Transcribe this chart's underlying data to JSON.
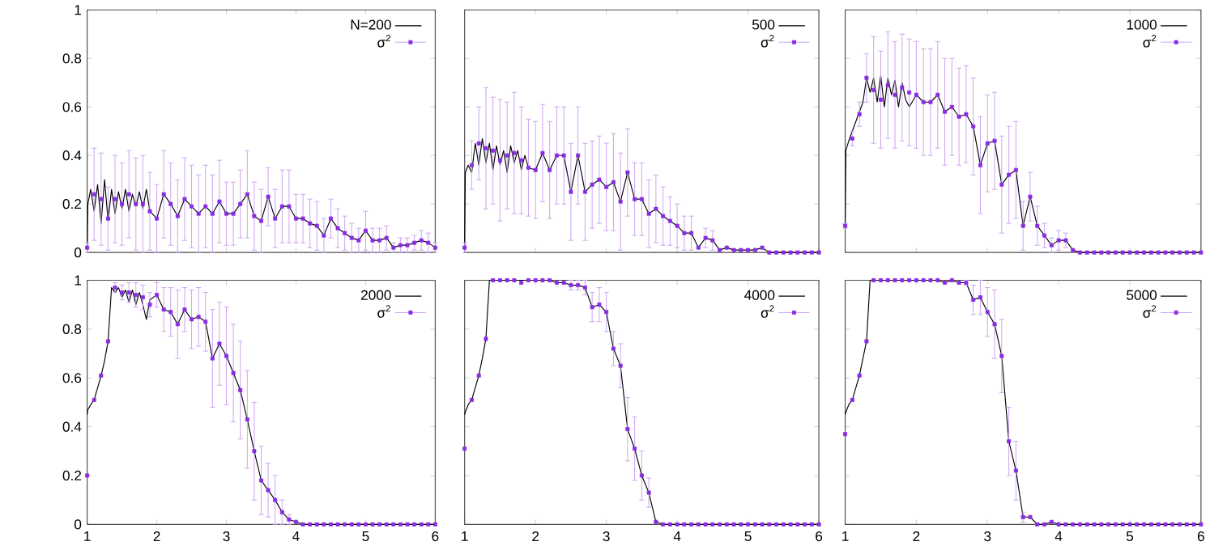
{
  "chart_data": [
    {
      "type": "line",
      "xlim": [
        1,
        6
      ],
      "ylim": [
        0,
        1
      ],
      "xticks": [
        1,
        2,
        3,
        4,
        5,
        6
      ],
      "yticks": [
        0,
        0.2,
        0.4,
        0.6,
        0.8,
        1
      ],
      "legend": "top right",
      "tick_labels": "y",
      "series": [
        {
          "name": "N=200",
          "type": "line",
          "color": "#000000",
          "x": [
            1,
            1.01,
            1.05,
            1.1,
            1.15,
            1.2,
            1.25,
            1.3,
            1.35,
            1.4,
            1.45,
            1.5,
            1.55,
            1.6,
            1.65,
            1.7,
            1.75,
            1.8,
            1.85,
            1.9,
            2,
            2.1,
            2.2,
            2.3,
            2.4,
            2.5,
            2.6,
            2.7,
            2.8,
            2.9,
            3,
            3.1,
            3.2,
            3.3,
            3.4,
            3.5,
            3.6,
            3.7,
            3.8,
            3.9,
            4,
            4.1,
            4.2,
            4.3,
            4.4,
            4.5,
            4.6,
            4.7,
            4.8,
            4.9,
            5,
            5.1,
            5.2,
            5.3,
            5.4,
            5.5,
            5.6,
            5.7,
            5.8,
            5.9,
            6
          ],
          "values": [
            0.02,
            0.2,
            0.26,
            0.17,
            0.28,
            0.12,
            0.3,
            0.13,
            0.26,
            0.16,
            0.25,
            0.18,
            0.26,
            0.17,
            0.24,
            0.19,
            0.25,
            0.18,
            0.26,
            0.17,
            0.14,
            0.24,
            0.2,
            0.15,
            0.22,
            0.19,
            0.16,
            0.19,
            0.16,
            0.21,
            0.16,
            0.16,
            0.2,
            0.24,
            0.15,
            0.13,
            0.23,
            0.14,
            0.19,
            0.19,
            0.14,
            0.14,
            0.12,
            0.11,
            0.07,
            0.14,
            0.1,
            0.08,
            0.06,
            0.05,
            0.09,
            0.05,
            0.05,
            0.06,
            0.02,
            0.03,
            0.03,
            0.04,
            0.05,
            0.04,
            0.02
          ]
        },
        {
          "name": "σ$^{2}$",
          "type": "scatter",
          "marker": "square",
          "color": "#8a2be2",
          "x": [
            1,
            1.1,
            1.2,
            1.3,
            1.4,
            1.5,
            1.6,
            1.7,
            1.8,
            1.9,
            2,
            2.1,
            2.2,
            2.3,
            2.4,
            2.5,
            2.6,
            2.7,
            2.8,
            2.9,
            3,
            3.1,
            3.2,
            3.3,
            3.4,
            3.5,
            3.6,
            3.7,
            3.8,
            3.9,
            4,
            4.1,
            4.2,
            4.3,
            4.4,
            4.5,
            4.6,
            4.7,
            4.8,
            4.9,
            5,
            5.1,
            5.2,
            5.3,
            5.4,
            5.5,
            5.6,
            5.7,
            5.8,
            5.9,
            6
          ],
          "values": [
            0.02,
            0.24,
            0.22,
            0.14,
            0.22,
            0.2,
            0.24,
            0.2,
            0.2,
            0.17,
            0.14,
            0.24,
            0.2,
            0.15,
            0.22,
            0.19,
            0.16,
            0.19,
            0.16,
            0.21,
            0.16,
            0.16,
            0.2,
            0.24,
            0.15,
            0.13,
            0.23,
            0.14,
            0.19,
            0.19,
            0.14,
            0.14,
            0.12,
            0.11,
            0.07,
            0.14,
            0.1,
            0.08,
            0.06,
            0.05,
            0.09,
            0.05,
            0.05,
            0.06,
            0.02,
            0.03,
            0.03,
            0.04,
            0.05,
            0.04,
            0.02
          ],
          "errors": [
            0.02,
            0.19,
            0.19,
            0.13,
            0.18,
            0.17,
            0.18,
            0.19,
            0.2,
            0.16,
            0.14,
            0.18,
            0.17,
            0.15,
            0.17,
            0.17,
            0.16,
            0.17,
            0.16,
            0.17,
            0.13,
            0.13,
            0.14,
            0.18,
            0.14,
            0.13,
            0.12,
            0.12,
            0.15,
            0.15,
            0.1,
            0.1,
            0.1,
            0.1,
            0.07,
            0.08,
            0.08,
            0.07,
            0.06,
            0.05,
            0.08,
            0.05,
            0.05,
            0.05,
            0.02,
            0.03,
            0.03,
            0.03,
            0.04,
            0.04,
            0.02
          ]
        }
      ]
    },
    {
      "type": "line",
      "xlim": [
        1,
        6
      ],
      "ylim": [
        0,
        1
      ],
      "xticks": [
        1,
        2,
        3,
        4,
        5,
        6
      ],
      "yticks": [
        0,
        0.2,
        0.4,
        0.6,
        0.8,
        1
      ],
      "legend": "top right",
      "tick_labels": false,
      "series": [
        {
          "name": "500",
          "type": "line",
          "color": "#000000",
          "x": [
            1,
            1.01,
            1.05,
            1.1,
            1.15,
            1.2,
            1.25,
            1.3,
            1.35,
            1.4,
            1.45,
            1.5,
            1.55,
            1.6,
            1.65,
            1.7,
            1.75,
            1.8,
            1.85,
            1.9,
            2,
            2.1,
            2.2,
            2.3,
            2.4,
            2.5,
            2.6,
            2.7,
            2.8,
            2.9,
            3,
            3.1,
            3.2,
            3.3,
            3.4,
            3.5,
            3.6,
            3.7,
            3.8,
            3.9,
            4,
            4.1,
            4.2,
            4.3,
            4.4,
            4.5,
            4.6,
            4.7,
            4.8,
            4.9,
            5,
            5.1,
            5.2,
            5.3,
            5.4,
            5.5,
            5.6,
            5.7,
            5.8,
            5.9,
            6
          ],
          "values": [
            0.02,
            0.33,
            0.36,
            0.33,
            0.45,
            0.36,
            0.47,
            0.37,
            0.45,
            0.34,
            0.44,
            0.36,
            0.42,
            0.33,
            0.44,
            0.37,
            0.42,
            0.34,
            0.4,
            0.35,
            0.34,
            0.41,
            0.34,
            0.4,
            0.4,
            0.25,
            0.4,
            0.25,
            0.28,
            0.3,
            0.27,
            0.29,
            0.21,
            0.33,
            0.22,
            0.22,
            0.16,
            0.18,
            0.15,
            0.13,
            0.11,
            0.08,
            0.08,
            0.02,
            0.06,
            0.05,
            0.01,
            0.02,
            0.01,
            0.01,
            0.01,
            0.01,
            0.02,
            0,
            0,
            0,
            0,
            0,
            0,
            0,
            0
          ]
        },
        {
          "name": "σ$^{2}$",
          "type": "scatter",
          "marker": "square",
          "color": "#8a2be2",
          "x": [
            1,
            1.1,
            1.2,
            1.3,
            1.4,
            1.5,
            1.6,
            1.7,
            1.8,
            1.9,
            2,
            2.1,
            2.2,
            2.3,
            2.4,
            2.5,
            2.6,
            2.7,
            2.8,
            2.9,
            3,
            3.1,
            3.2,
            3.3,
            3.4,
            3.5,
            3.6,
            3.7,
            3.8,
            3.9,
            4,
            4.1,
            4.2,
            4.3,
            4.4,
            4.5,
            4.6,
            4.7,
            4.8,
            4.9,
            5,
            5.1,
            5.2,
            5.3,
            5.4,
            5.5,
            5.6,
            5.7,
            5.8,
            5.9,
            6
          ],
          "values": [
            0.02,
            0.36,
            0.45,
            0.43,
            0.42,
            0.38,
            0.4,
            0.41,
            0.38,
            0.35,
            0.34,
            0.41,
            0.34,
            0.4,
            0.4,
            0.25,
            0.4,
            0.25,
            0.28,
            0.3,
            0.27,
            0.29,
            0.21,
            0.33,
            0.22,
            0.22,
            0.16,
            0.18,
            0.15,
            0.13,
            0.11,
            0.08,
            0.08,
            0.02,
            0.06,
            0.05,
            0.01,
            0.02,
            0.01,
            0.01,
            0.01,
            0.01,
            0.02,
            0,
            0,
            0,
            0,
            0,
            0,
            0,
            0
          ],
          "errors": [
            0.02,
            0.1,
            0.15,
            0.25,
            0.22,
            0.25,
            0.22,
            0.25,
            0.22,
            0.2,
            0.2,
            0.2,
            0.2,
            0.2,
            0.2,
            0.2,
            0.2,
            0.2,
            0.18,
            0.18,
            0.18,
            0.2,
            0.2,
            0.18,
            0.15,
            0.15,
            0.14,
            0.14,
            0.12,
            0.1,
            0.09,
            0.07,
            0.07,
            null,
            0.04,
            0.04,
            null,
            null,
            null,
            null,
            null,
            null,
            null,
            null,
            null,
            null,
            null,
            null,
            null,
            null,
            null
          ]
        }
      ]
    },
    {
      "type": "line",
      "xlim": [
        1,
        6
      ],
      "ylim": [
        0,
        1
      ],
      "xticks": [
        1,
        2,
        3,
        4,
        5,
        6
      ],
      "yticks": [
        0,
        0.2,
        0.4,
        0.6,
        0.8,
        1
      ],
      "legend": "top right",
      "tick_labels": false,
      "series": [
        {
          "name": "1000",
          "type": "line",
          "color": "#000000",
          "x": [
            1,
            1.01,
            1.05,
            1.1,
            1.15,
            1.2,
            1.25,
            1.3,
            1.35,
            1.4,
            1.45,
            1.5,
            1.55,
            1.6,
            1.65,
            1.7,
            1.75,
            1.8,
            1.85,
            1.9,
            2,
            2.1,
            2.2,
            2.3,
            2.4,
            2.5,
            2.6,
            2.7,
            2.8,
            2.9,
            3,
            3.1,
            3.2,
            3.3,
            3.4,
            3.5,
            3.6,
            3.7,
            3.8,
            3.9,
            4,
            4.1,
            4.2,
            4.3,
            4.4,
            4.5,
            4.6,
            4.7,
            4.8,
            4.9,
            5,
            5.1,
            5.2,
            5.3,
            5.4,
            5.5,
            5.6,
            5.7,
            5.8,
            5.9,
            6
          ],
          "values": [
            0.11,
            0.42,
            0.46,
            0.5,
            0.54,
            0.58,
            0.62,
            0.72,
            0.66,
            0.72,
            0.62,
            0.73,
            0.6,
            0.72,
            0.65,
            0.71,
            0.6,
            0.7,
            0.63,
            0.6,
            0.65,
            0.62,
            0.62,
            0.65,
            0.58,
            0.6,
            0.56,
            0.57,
            0.52,
            0.36,
            0.45,
            0.46,
            0.28,
            0.32,
            0.34,
            0.11,
            0.23,
            0.11,
            0.07,
            0.03,
            0.05,
            0.05,
            0.01,
            0,
            0,
            0,
            0,
            0,
            0,
            0,
            0,
            0,
            0,
            0,
            0,
            0,
            0,
            0,
            0,
            0,
            0
          ]
        },
        {
          "name": "σ$^{2}$",
          "type": "scatter",
          "marker": "square",
          "color": "#8a2be2",
          "x": [
            1,
            1.1,
            1.2,
            1.3,
            1.4,
            1.5,
            1.6,
            1.7,
            1.8,
            1.9,
            2,
            2.1,
            2.2,
            2.3,
            2.4,
            2.5,
            2.6,
            2.7,
            2.8,
            2.9,
            3,
            3.1,
            3.2,
            3.3,
            3.4,
            3.5,
            3.6,
            3.7,
            3.8,
            3.9,
            4,
            4.1,
            4.2,
            4.3,
            4.4,
            4.5,
            4.6,
            4.7,
            4.8,
            4.9,
            5,
            5.1,
            5.2,
            5.3,
            5.4,
            5.5,
            5.6,
            5.7,
            5.8,
            5.9,
            6
          ],
          "values": [
            0.11,
            0.47,
            0.57,
            0.72,
            0.67,
            0.63,
            0.69,
            0.65,
            0.68,
            0.66,
            0.65,
            0.62,
            0.62,
            0.65,
            0.58,
            0.6,
            0.56,
            0.57,
            0.52,
            0.36,
            0.45,
            0.46,
            0.28,
            0.32,
            0.34,
            0.11,
            0.23,
            0.11,
            0.07,
            0.03,
            0.05,
            0.05,
            0.01,
            0,
            0,
            0,
            0,
            0,
            0,
            0,
            0,
            0,
            0,
            0,
            0,
            0,
            0,
            0,
            0,
            0,
            0
          ],
          "errors": [
            0.01,
            0.03,
            0.05,
            0.1,
            0.22,
            0.2,
            0.22,
            0.22,
            0.22,
            0.22,
            0.22,
            0.22,
            0.22,
            0.22,
            0.22,
            0.2,
            0.2,
            0.2,
            0.2,
            0.2,
            0.2,
            0.2,
            0.2,
            0.2,
            0.2,
            0.1,
            0.1,
            0.08,
            0.05,
            0.03,
            0.04,
            0.03,
            null,
            null,
            null,
            null,
            null,
            null,
            null,
            null,
            null,
            null,
            null,
            null,
            null,
            null,
            null,
            null,
            null,
            null,
            null
          ]
        }
      ]
    },
    {
      "type": "line",
      "xlim": [
        1,
        6
      ],
      "ylim": [
        0,
        1
      ],
      "xticks": [
        1,
        2,
        3,
        4,
        5,
        6
      ],
      "yticks": [
        0,
        0.2,
        0.4,
        0.6,
        0.8,
        1
      ],
      "legend": "top right",
      "series": [
        {
          "name": "2000",
          "type": "line",
          "color": "#000000",
          "x": [
            1,
            1.01,
            1.05,
            1.1,
            1.15,
            1.2,
            1.25,
            1.3,
            1.35,
            1.4,
            1.45,
            1.5,
            1.55,
            1.6,
            1.65,
            1.7,
            1.75,
            1.8,
            1.85,
            1.9,
            2,
            2.1,
            2.2,
            2.3,
            2.4,
            2.5,
            2.6,
            2.7,
            2.8,
            2.9,
            3,
            3.1,
            3.2,
            3.3,
            3.4,
            3.5,
            3.6,
            3.7,
            3.8,
            3.9,
            4,
            4.1,
            4.2,
            4.3,
            4.4,
            4.5,
            4.6,
            4.7,
            4.8,
            4.9,
            5,
            5.1,
            5.2,
            5.3,
            5.4,
            5.5,
            5.6,
            5.7,
            5.8,
            5.9,
            6
          ],
          "values": [
            0.45,
            0.47,
            0.49,
            0.51,
            0.56,
            0.61,
            0.67,
            0.75,
            0.97,
            0.95,
            0.97,
            0.93,
            0.96,
            0.91,
            0.96,
            0.9,
            0.95,
            0.9,
            0.84,
            0.92,
            0.94,
            0.88,
            0.87,
            0.82,
            0.88,
            0.84,
            0.85,
            0.83,
            0.68,
            0.74,
            0.69,
            0.62,
            0.55,
            0.43,
            0.3,
            0.18,
            0.14,
            0.1,
            0.05,
            0.02,
            0.01,
            0,
            0,
            0,
            0,
            0,
            0,
            0,
            0,
            0,
            0,
            0,
            0,
            0,
            0,
            0,
            0,
            0,
            0,
            0,
            0
          ]
        },
        {
          "name": "σ$^{2}$",
          "type": "scatter",
          "marker": "square",
          "color": "#8a2be2",
          "x": [
            1,
            1.1,
            1.2,
            1.3,
            1.4,
            1.5,
            1.6,
            1.7,
            1.8,
            1.9,
            2,
            2.1,
            2.2,
            2.3,
            2.4,
            2.5,
            2.6,
            2.7,
            2.8,
            2.9,
            3,
            3.1,
            3.2,
            3.3,
            3.4,
            3.5,
            3.6,
            3.7,
            3.8,
            3.9,
            4,
            4.1,
            4.2,
            4.3,
            4.4,
            4.5,
            4.6,
            4.7,
            4.8,
            4.9,
            5,
            5.1,
            5.2,
            5.3,
            5.4,
            5.5,
            5.6,
            5.7,
            5.8,
            5.9,
            6
          ],
          "values": [
            0.2,
            0.51,
            0.61,
            0.75,
            0.97,
            0.95,
            0.95,
            0.94,
            0.93,
            0.9,
            0.94,
            0.88,
            0.87,
            0.82,
            0.88,
            0.84,
            0.85,
            0.83,
            0.68,
            0.74,
            0.69,
            0.62,
            0.55,
            0.43,
            0.3,
            0.18,
            0.14,
            0.1,
            0.05,
            0.02,
            0.01,
            0,
            0,
            0,
            0,
            0,
            0,
            0,
            0,
            0,
            0,
            0,
            0,
            0,
            0,
            0,
            0,
            0,
            0,
            0,
            0
          ],
          "errors": [
            null,
            null,
            null,
            null,
            0.02,
            0.03,
            0.04,
            0.05,
            0.05,
            0.05,
            0.05,
            0.09,
            0.1,
            0.14,
            0.09,
            0.12,
            0.12,
            0.12,
            0.2,
            0.17,
            0.2,
            0.2,
            0.2,
            0.2,
            0.2,
            0.14,
            0.11,
            0.1,
            0.05,
            0.02,
            null,
            null,
            null,
            null,
            null,
            null,
            null,
            null,
            null,
            null,
            null,
            null,
            null,
            null,
            null,
            null,
            null,
            null,
            null,
            null,
            null
          ]
        }
      ]
    },
    {
      "type": "line",
      "xlim": [
        1,
        6
      ],
      "ylim": [
        0,
        1
      ],
      "xticks": [
        1,
        2,
        3,
        4,
        5,
        6
      ],
      "yticks": [
        0,
        0.2,
        0.4,
        0.6,
        0.8,
        1
      ],
      "legend": "top right",
      "tick_labels": "x",
      "series": [
        {
          "name": "4000",
          "type": "line",
          "color": "#000000",
          "x": [
            1,
            1.01,
            1.05,
            1.1,
            1.15,
            1.2,
            1.25,
            1.3,
            1.35,
            1.4,
            1.45,
            1.5,
            1.55,
            1.6,
            1.65,
            1.7,
            1.75,
            1.8,
            1.85,
            1.9,
            2,
            2.1,
            2.2,
            2.3,
            2.4,
            2.5,
            2.6,
            2.7,
            2.8,
            2.9,
            3,
            3.1,
            3.2,
            3.3,
            3.4,
            3.5,
            3.6,
            3.7,
            3.8,
            3.9,
            4,
            4.1,
            4.2,
            4.3,
            4.4,
            4.5,
            4.6,
            4.7,
            4.8,
            4.9,
            5,
            5.1,
            5.2,
            5.3,
            5.4,
            5.5,
            5.6,
            5.7,
            5.8,
            5.9,
            6
          ],
          "values": [
            0.45,
            0.46,
            0.49,
            0.51,
            0.56,
            0.61,
            0.68,
            0.76,
            1,
            1,
            1,
            1,
            1,
            1,
            1,
            1,
            1,
            1,
            1,
            1,
            1,
            1,
            1,
            0.99,
            0.99,
            0.98,
            0.98,
            0.97,
            0.89,
            0.9,
            0.87,
            0.72,
            0.65,
            0.39,
            0.31,
            0.2,
            0.13,
            0.01,
            0,
            0,
            0,
            0,
            0,
            0,
            0,
            0,
            0,
            0,
            0,
            0,
            0,
            0,
            0,
            0,
            0,
            0,
            0,
            0,
            0,
            0,
            0
          ]
        },
        {
          "name": "σ$^{2}$",
          "type": "scatter",
          "marker": "square",
          "color": "#8a2be2",
          "x": [
            1,
            1.1,
            1.2,
            1.3,
            1.4,
            1.5,
            1.6,
            1.7,
            1.8,
            1.9,
            2,
            2.1,
            2.2,
            2.3,
            2.4,
            2.5,
            2.6,
            2.7,
            2.8,
            2.9,
            3,
            3.1,
            3.2,
            3.3,
            3.4,
            3.5,
            3.6,
            3.7,
            3.8,
            3.9,
            4,
            4.1,
            4.2,
            4.3,
            4.4,
            4.5,
            4.6,
            4.7,
            4.8,
            4.9,
            5,
            5.1,
            5.2,
            5.3,
            5.4,
            5.5,
            5.6,
            5.7,
            5.8,
            5.9,
            6
          ],
          "values": [
            0.31,
            0.51,
            0.61,
            0.76,
            1,
            1,
            1,
            1,
            0.99,
            1,
            1,
            1,
            1,
            0.99,
            0.99,
            0.98,
            0.98,
            0.97,
            0.89,
            0.9,
            0.87,
            0.72,
            0.65,
            0.39,
            0.31,
            0.2,
            0.13,
            0.01,
            0,
            0,
            0,
            0,
            0,
            0,
            0,
            0,
            0,
            0,
            0,
            0,
            0,
            0,
            0,
            0,
            0,
            0,
            0,
            0,
            0,
            0,
            0
          ],
          "errors": [
            null,
            null,
            null,
            null,
            null,
            null,
            null,
            null,
            null,
            null,
            null,
            null,
            null,
            null,
            null,
            0.02,
            0.02,
            0.03,
            0.06,
            0.07,
            0.08,
            0.07,
            0.09,
            0.13,
            0.13,
            0.1,
            0.06,
            null,
            null,
            null,
            null,
            null,
            null,
            null,
            null,
            null,
            null,
            null,
            null,
            null,
            null,
            null,
            null,
            null,
            null,
            null,
            null,
            null,
            null,
            null,
            null
          ]
        }
      ]
    },
    {
      "type": "line",
      "xlim": [
        1,
        6
      ],
      "ylim": [
        0,
        1
      ],
      "xticks": [
        1,
        2,
        3,
        4,
        5,
        6
      ],
      "yticks": [
        0,
        0.2,
        0.4,
        0.6,
        0.8,
        1
      ],
      "legend": "top right",
      "tick_labels": "x",
      "series": [
        {
          "name": "5000",
          "type": "line",
          "color": "#000000",
          "x": [
            1,
            1.01,
            1.05,
            1.1,
            1.15,
            1.2,
            1.25,
            1.3,
            1.35,
            1.4,
            1.45,
            1.5,
            1.55,
            1.6,
            1.65,
            1.7,
            1.75,
            1.8,
            1.85,
            1.9,
            2,
            2.1,
            2.2,
            2.3,
            2.4,
            2.5,
            2.6,
            2.7,
            2.8,
            2.9,
            3,
            3.1,
            3.2,
            3.3,
            3.4,
            3.5,
            3.6,
            3.7,
            3.8,
            3.9,
            4,
            4.1,
            4.2,
            4.3,
            4.4,
            4.5,
            4.6,
            4.7,
            4.8,
            4.9,
            5,
            5.1,
            5.2,
            5.3,
            5.4,
            5.5,
            5.6,
            5.7,
            5.8,
            5.9,
            6
          ],
          "values": [
            0.45,
            0.46,
            0.49,
            0.51,
            0.56,
            0.61,
            0.68,
            0.75,
            1,
            1,
            1,
            1,
            1,
            1,
            1,
            1,
            1,
            1,
            1,
            1,
            1,
            1,
            1,
            1,
            0.99,
            1,
            0.99,
            0.99,
            0.92,
            0.93,
            0.87,
            0.82,
            0.69,
            0.34,
            0.22,
            0.03,
            0.03,
            0,
            0,
            0.01,
            0,
            0,
            0,
            0,
            0,
            0,
            0,
            0,
            0,
            0,
            0,
            0,
            0,
            0,
            0,
            0,
            0,
            0,
            0,
            0,
            0
          ]
        },
        {
          "name": "σ$^{2}$",
          "type": "scatter",
          "marker": "square",
          "color": "#8a2be2",
          "x": [
            1,
            1.1,
            1.2,
            1.3,
            1.4,
            1.5,
            1.6,
            1.7,
            1.8,
            1.9,
            2,
            2.1,
            2.2,
            2.3,
            2.4,
            2.5,
            2.6,
            2.7,
            2.8,
            2.9,
            3,
            3.1,
            3.2,
            3.3,
            3.4,
            3.5,
            3.6,
            3.7,
            3.8,
            3.9,
            4,
            4.1,
            4.2,
            4.3,
            4.4,
            4.5,
            4.6,
            4.7,
            4.8,
            4.9,
            5,
            5.1,
            5.2,
            5.3,
            5.4,
            5.5,
            5.6,
            5.7,
            5.8,
            5.9,
            6
          ],
          "values": [
            0.37,
            0.51,
            0.61,
            0.75,
            1,
            1,
            1,
            1,
            1,
            1,
            1,
            1,
            1,
            1,
            0.99,
            1,
            0.99,
            0.99,
            0.92,
            0.93,
            0.87,
            0.82,
            0.69,
            0.34,
            0.22,
            0.03,
            0.03,
            0,
            0,
            0.01,
            0,
            0,
            0,
            0,
            0,
            0,
            0,
            0,
            0,
            0,
            0,
            0,
            0,
            0,
            0,
            0,
            0,
            0,
            0,
            0,
            0
          ],
          "errors": [
            null,
            null,
            null,
            null,
            null,
            null,
            null,
            null,
            null,
            null,
            null,
            null,
            null,
            null,
            null,
            null,
            null,
            0.01,
            0.06,
            0.07,
            0.1,
            0.14,
            0.15,
            0.14,
            0.12,
            0.02,
            null,
            null,
            null,
            null,
            null,
            null,
            null,
            null,
            null,
            null,
            null,
            null,
            null,
            null,
            null,
            null,
            null,
            null,
            null,
            null,
            null,
            null,
            null,
            null,
            null
          ]
        }
      ]
    }
  ]
}
